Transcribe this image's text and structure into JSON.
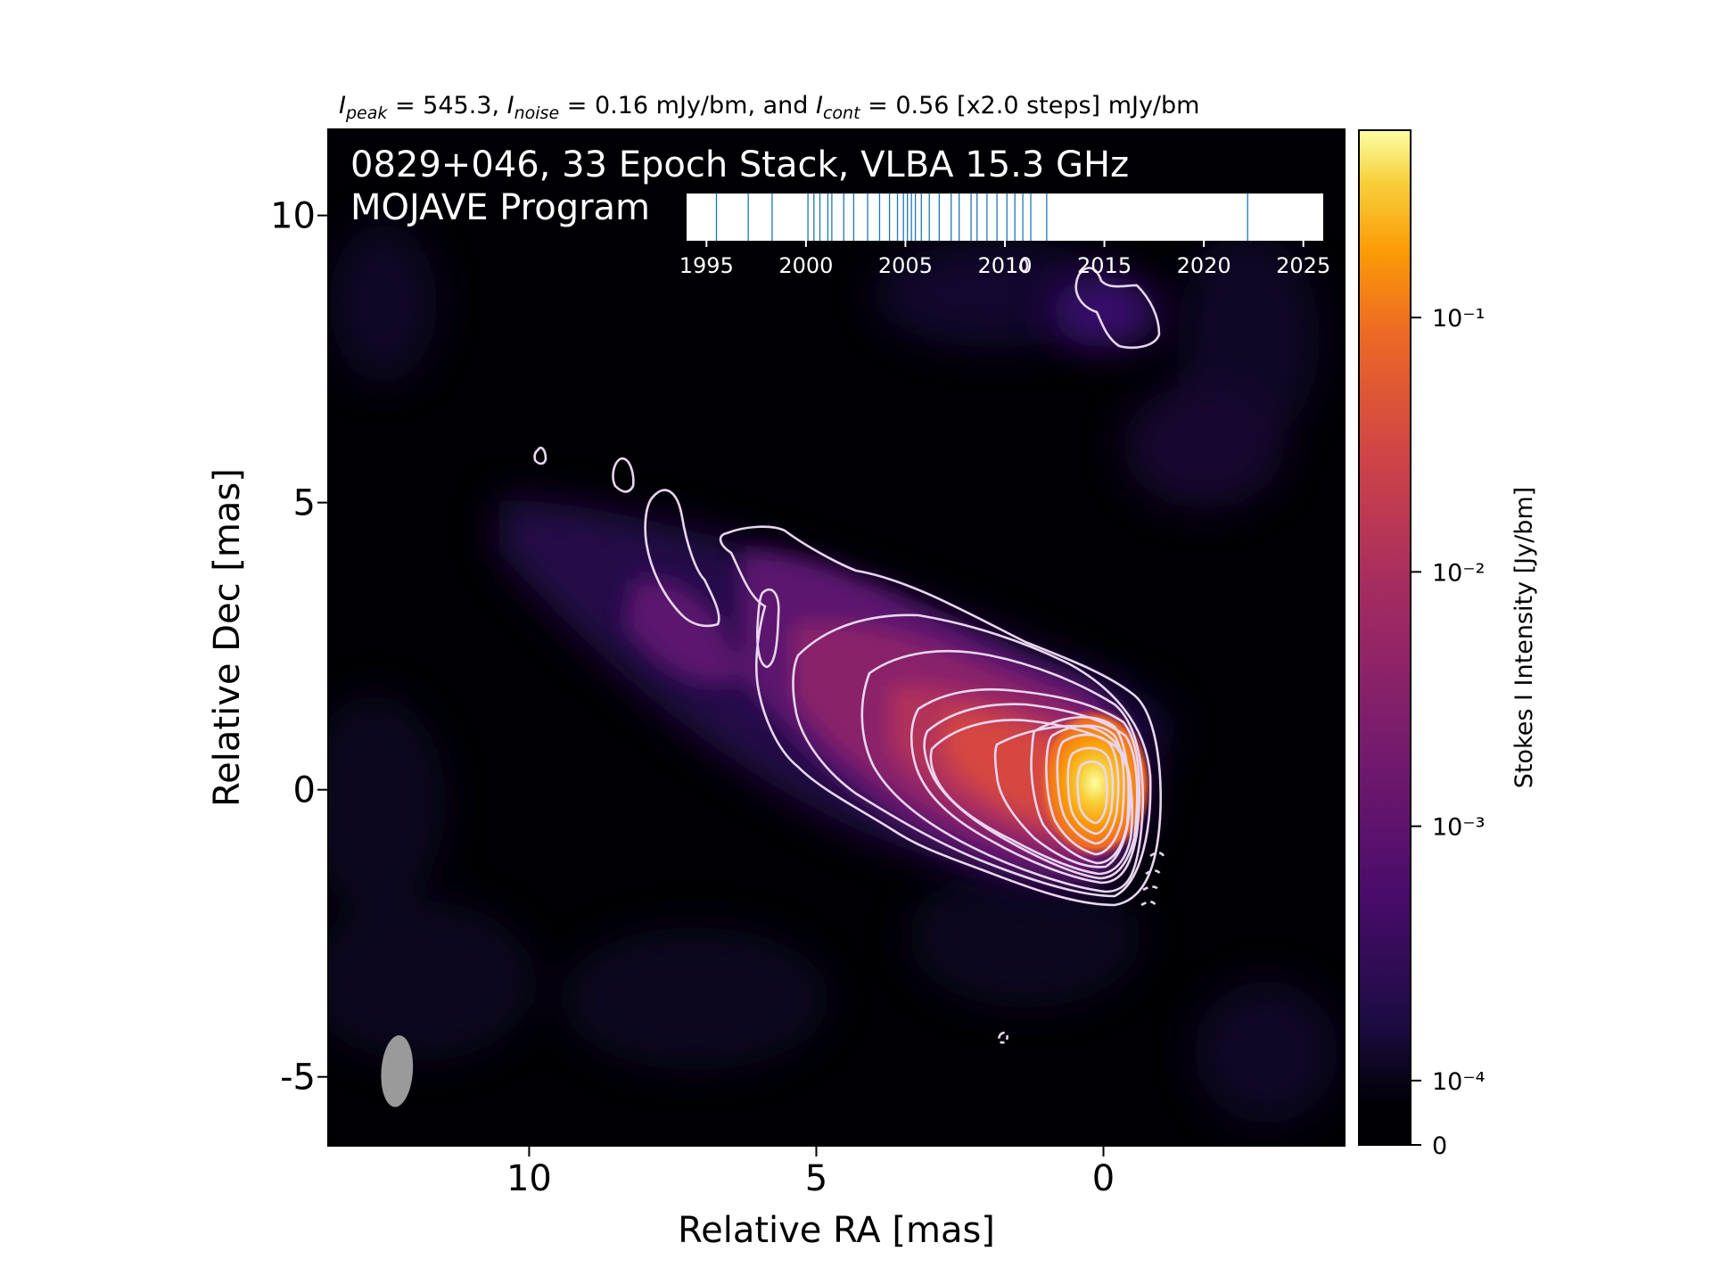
{
  "chart_data": {
    "type": "heatmap",
    "title": "0829+046, 33 Epoch Stack, VLBA 15.3 GHz",
    "subtitle": "MOJAVE Program",
    "header": {
      "peak_value": "545.3",
      "noise_value": "0.16",
      "cont_value": "0.56",
      "steps": "[x2.0 steps]",
      "unit": "mJy/bm",
      "text_eq": " = ",
      "text_comma": ", ",
      "text_and": ", and ",
      "text_peak_sub": "peak",
      "text_noise_sub": "noise",
      "text_cont_sub": "cont",
      "symbol": "I"
    },
    "xlabel": "Relative RA [mas]",
    "ylabel": "Relative Dec [mas]",
    "xlim": [
      13.5,
      -4.2
    ],
    "ylim": [
      -6.2,
      11.5
    ],
    "x_ticks": [
      10,
      5,
      0
    ],
    "x_tick_labels": [
      "10",
      "5",
      "0"
    ],
    "y_ticks": [
      10,
      5,
      0,
      -5
    ],
    "y_tick_labels": [
      "10",
      "5",
      "0",
      "-5"
    ],
    "colorbar": {
      "label": "Stokes I Intensity [Jy/bm]",
      "scale": "log",
      "ticks": [
        0.1,
        0.01,
        0.001,
        0.0001,
        0
      ],
      "tick_labels": [
        "10⁻¹",
        "10⁻²",
        "10⁻³",
        "10⁻⁴",
        "0"
      ],
      "colormap": "inferno"
    },
    "peak": {
      "ra": 0,
      "dec": 0,
      "flux_mJy": 545.3
    },
    "beam": {
      "ra": 12.3,
      "dec": -4.9,
      "major_mas": 1.25,
      "minor_mas": 0.55
    },
    "epoch_timeline": {
      "xlim": [
        1994.0,
        2026.0
      ],
      "ticks": [
        1995,
        2000,
        2005,
        2010,
        2015,
        2020,
        2025
      ],
      "tick_labels": [
        "1995",
        "2000",
        "2005",
        "2010",
        "2015",
        "2020",
        "2025"
      ],
      "epochs": [
        1995.5,
        1997.1,
        1998.3,
        2000.1,
        2000.4,
        2000.7,
        2001.1,
        2001.3,
        2001.9,
        2002.4,
        2003.1,
        2003.7,
        2004.2,
        2004.6,
        2004.9,
        2005.1,
        2005.3,
        2005.5,
        2005.8,
        2006.2,
        2006.7,
        2007.3,
        2007.7,
        2008.3,
        2008.6,
        2009.1,
        2009.6,
        2010.1,
        2010.5,
        2010.9,
        2011.3,
        2012.1,
        2022.2
      ]
    },
    "colors": {
      "contour": "#e8d6f0",
      "timeline_line": "#1f77b4",
      "beam": "#9a9a9a"
    }
  }
}
